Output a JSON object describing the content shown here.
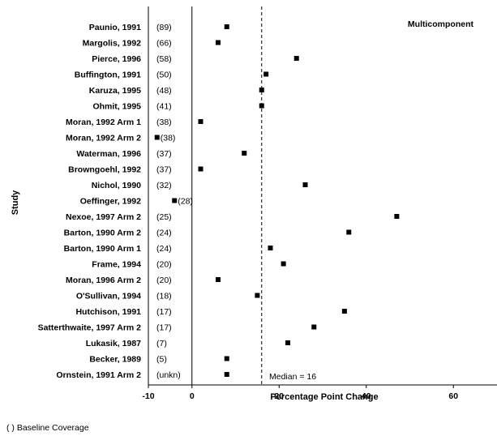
{
  "chart_data": {
    "type": "scatter",
    "title": "Multicomponent",
    "xlabel": "Percentage Point Change",
    "ylabel": "Study",
    "xlim": [
      -10,
      70
    ],
    "xticks": [
      -10,
      0,
      20,
      40,
      60
    ],
    "grid": false,
    "reference_line": {
      "x": 16,
      "label": "Median = 16",
      "style": "dashed"
    },
    "footnote": "( ) Baseline Coverage",
    "studies": [
      {
        "study": "Paunio, 1991",
        "coverage": "(89)",
        "value": 8
      },
      {
        "study": "Margolis, 1992",
        "coverage": "(66)",
        "value": 6
      },
      {
        "study": "Pierce, 1996",
        "coverage": "(58)",
        "value": 24
      },
      {
        "study": "Buffington, 1991",
        "coverage": "(50)",
        "value": 17
      },
      {
        "study": "Karuza, 1995",
        "coverage": "(48)",
        "value": 16
      },
      {
        "study": "Ohmit, 1995",
        "coverage": "(41)",
        "value": 16
      },
      {
        "study": "Moran, 1992 Arm 1",
        "coverage": "(38)",
        "value": 2
      },
      {
        "study": "Moran, 1992 Arm 2",
        "coverage": "(38)",
        "value": -8
      },
      {
        "study": "Waterman, 1996",
        "coverage": "(37)",
        "value": 12
      },
      {
        "study": "Browngoehl, 1992",
        "coverage": "(37)",
        "value": 2
      },
      {
        "study": "Nichol, 1990",
        "coverage": "(32)",
        "value": 26
      },
      {
        "study": "Oeffinger, 1992",
        "coverage": "(28)",
        "value": -4
      },
      {
        "study": "Nexoe, 1997 Arm 2",
        "coverage": "(25)",
        "value": 47
      },
      {
        "study": "Barton, 1990 Arm 2",
        "coverage": "(24)",
        "value": 36
      },
      {
        "study": "Barton, 1990 Arm 1",
        "coverage": "(24)",
        "value": 18
      },
      {
        "study": "Frame, 1994",
        "coverage": "(20)",
        "value": 21
      },
      {
        "study": "Moran, 1996 Arm 2",
        "coverage": "(20)",
        "value": 6
      },
      {
        "study": "O'Sullivan, 1994",
        "coverage": "(18)",
        "value": 15
      },
      {
        "study": "Hutchison, 1991",
        "coverage": "(17)",
        "value": 35
      },
      {
        "study": "Satterthwaite, 1997 Arm 2",
        "coverage": "(17)",
        "value": 28
      },
      {
        "study": "Lukasik, 1987",
        "coverage": "(7)",
        "value": 22
      },
      {
        "study": "Becker, 1989",
        "coverage": "(5)",
        "value": 8
      },
      {
        "study": "Ornstein, 1991 Arm 2",
        "coverage": "(unkn)",
        "value": 8
      }
    ]
  }
}
